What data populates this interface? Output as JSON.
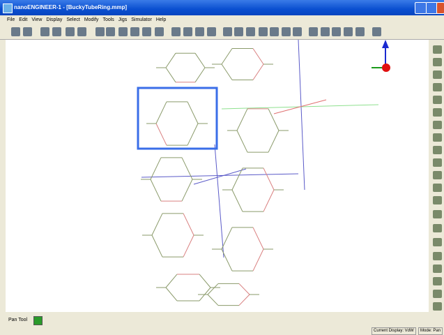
{
  "title_bar": {
    "title": "nanoENGINEER-1 - [BuckyTubeRing.mmp]"
  },
  "menu": [
    "File",
    "Edit",
    "View",
    "Display",
    "Select",
    "Modify",
    "Tools",
    "Jigs",
    "Simulator",
    "Help"
  ],
  "status_bar": {
    "tool": "Pan Tool",
    "display": "Current Display: VdW",
    "mode": "Mode: Pan"
  }
}
